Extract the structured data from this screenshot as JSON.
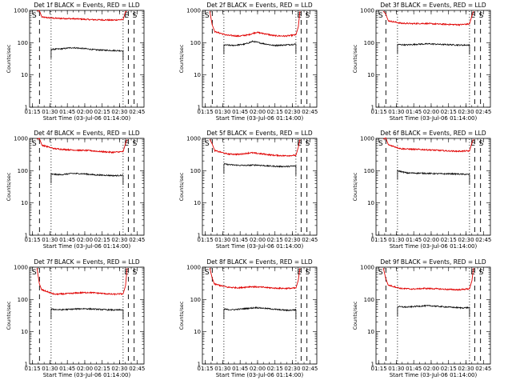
{
  "figure": {
    "xlabel": "Start Time (03-Jul-06 01:14:00)",
    "ylabel": "Counts/sec",
    "marker_start": "S",
    "marker_end": "E",
    "x_ticks": [
      {
        "t": 1,
        "label": "01:15"
      },
      {
        "t": 16,
        "label": "01:30"
      },
      {
        "t": 31,
        "label": "01:45"
      },
      {
        "t": 46,
        "label": "02:00"
      },
      {
        "t": 61,
        "label": "02:15"
      },
      {
        "t": 76,
        "label": "02:30"
      },
      {
        "t": 91,
        "label": "02:45"
      }
    ],
    "y_ticks": [
      {
        "v": 1,
        "label": "1"
      },
      {
        "v": 10,
        "label": "10"
      },
      {
        "v": 100,
        "label": "100"
      },
      {
        "v": 1000,
        "label": "1000"
      }
    ],
    "xlim": [
      -1.5,
      97
    ],
    "ylim": [
      1,
      1000
    ],
    "dashed_lines": [
      7,
      83.5,
      88.5
    ],
    "dotted_lines": [
      17,
      79
    ]
  },
  "chart_data": [
    {
      "type": "line",
      "title": "Det 1f BLACK = Events, RED = LLD",
      "yscale": "log",
      "series": [
        {
          "name": "LLD",
          "color": "#e00000",
          "x": [
            9,
            20,
            30,
            40,
            50,
            60,
            70,
            79
          ],
          "y": [
            620,
            570,
            560,
            545,
            520,
            510,
            500,
            520
          ]
        },
        {
          "name": "Events",
          "color": "#000000",
          "x": [
            17,
            25,
            35,
            45,
            55,
            65,
            72,
            79
          ],
          "y": [
            62,
            64,
            70,
            66,
            60,
            58,
            57,
            56
          ]
        }
      ]
    },
    {
      "type": "line",
      "title": "Det 2f BLACK = Events, RED = LLD",
      "yscale": "log",
      "series": [
        {
          "name": "LLD",
          "color": "#e00000",
          "x": [
            9,
            20,
            30,
            38,
            45,
            52,
            60,
            70,
            79
          ],
          "y": [
            220,
            170,
            160,
            175,
            210,
            190,
            165,
            160,
            175
          ]
        },
        {
          "name": "Events",
          "color": "#000000",
          "x": [
            17,
            25,
            35,
            42,
            50,
            60,
            70,
            79
          ],
          "y": [
            85,
            82,
            90,
            110,
            95,
            82,
            85,
            90
          ]
        }
      ]
    },
    {
      "type": "line",
      "title": "Det 3f BLACK = Events, RED = LLD",
      "yscale": "log",
      "series": [
        {
          "name": "LLD",
          "color": "#e00000",
          "x": [
            9,
            20,
            30,
            40,
            50,
            60,
            70,
            79
          ],
          "y": [
            480,
            400,
            390,
            395,
            380,
            370,
            360,
            380
          ]
        },
        {
          "name": "Events",
          "color": "#000000",
          "x": [
            17,
            25,
            35,
            45,
            55,
            65,
            72,
            79
          ],
          "y": [
            88,
            85,
            90,
            92,
            88,
            86,
            84,
            85
          ]
        }
      ]
    },
    {
      "type": "line",
      "title": "Det 4f BLACK = Events, RED = LLD",
      "yscale": "log",
      "series": [
        {
          "name": "LLD",
          "color": "#e00000",
          "x": [
            9,
            20,
            30,
            40,
            50,
            60,
            70,
            79
          ],
          "y": [
            620,
            480,
            450,
            430,
            420,
            390,
            370,
            390
          ]
        },
        {
          "name": "Events",
          "color": "#000000",
          "x": [
            17,
            25,
            35,
            45,
            55,
            65,
            72,
            79
          ],
          "y": [
            78,
            75,
            82,
            80,
            74,
            72,
            70,
            72
          ]
        }
      ]
    },
    {
      "type": "line",
      "title": "Det 5f BLACK = Events, RED = LLD",
      "yscale": "log",
      "series": [
        {
          "name": "LLD",
          "color": "#e00000",
          "x": [
            9,
            20,
            30,
            40,
            50,
            60,
            70,
            79
          ],
          "y": [
            420,
            330,
            320,
            360,
            330,
            300,
            290,
            300
          ]
        },
        {
          "name": "Events",
          "color": "#000000",
          "x": [
            17,
            25,
            35,
            45,
            55,
            65,
            72,
            79
          ],
          "y": [
            160,
            150,
            145,
            150,
            140,
            135,
            135,
            140
          ]
        }
      ]
    },
    {
      "type": "line",
      "title": "Det 6f BLACK = Events, RED = LLD",
      "yscale": "log",
      "series": [
        {
          "name": "LLD",
          "color": "#e00000",
          "x": [
            9,
            20,
            30,
            40,
            50,
            60,
            70,
            79
          ],
          "y": [
            640,
            480,
            460,
            450,
            430,
            410,
            400,
            410
          ]
        },
        {
          "name": "Events",
          "color": "#000000",
          "x": [
            17,
            25,
            35,
            45,
            55,
            65,
            72,
            79
          ],
          "y": [
            100,
            85,
            84,
            82,
            80,
            80,
            78,
            76
          ]
        }
      ]
    },
    {
      "type": "line",
      "title": "Det 7f BLACK = Events, RED = LLD",
      "yscale": "log",
      "series": [
        {
          "name": "LLD",
          "color": "#e00000",
          "x": [
            9,
            20,
            30,
            40,
            50,
            60,
            70,
            79
          ],
          "y": [
            200,
            145,
            150,
            160,
            165,
            155,
            145,
            150
          ]
        },
        {
          "name": "Events",
          "color": "#000000",
          "x": [
            17,
            25,
            35,
            45,
            55,
            65,
            72,
            79
          ],
          "y": [
            50,
            48,
            50,
            52,
            50,
            48,
            47,
            48
          ]
        }
      ]
    },
    {
      "type": "line",
      "title": "Det 8f BLACK = Events, RED = LLD",
      "yscale": "log",
      "series": [
        {
          "name": "LLD",
          "color": "#e00000",
          "x": [
            9,
            20,
            30,
            40,
            50,
            60,
            70,
            79
          ],
          "y": [
            300,
            240,
            230,
            250,
            240,
            225,
            220,
            225
          ]
        },
        {
          "name": "Events",
          "color": "#000000",
          "x": [
            17,
            25,
            35,
            45,
            55,
            65,
            72,
            79
          ],
          "y": [
            50,
            48,
            52,
            56,
            52,
            48,
            46,
            48
          ]
        }
      ]
    },
    {
      "type": "line",
      "title": "Det 9f BLACK = Events, RED = LLD",
      "yscale": "log",
      "series": [
        {
          "name": "LLD",
          "color": "#e00000",
          "x": [
            9,
            20,
            30,
            40,
            50,
            60,
            70,
            79
          ],
          "y": [
            280,
            220,
            210,
            220,
            215,
            205,
            200,
            215
          ]
        },
        {
          "name": "Events",
          "color": "#000000",
          "x": [
            17,
            25,
            35,
            45,
            55,
            65,
            72,
            79
          ],
          "y": [
            60,
            58,
            62,
            64,
            60,
            57,
            55,
            56
          ]
        }
      ]
    }
  ]
}
